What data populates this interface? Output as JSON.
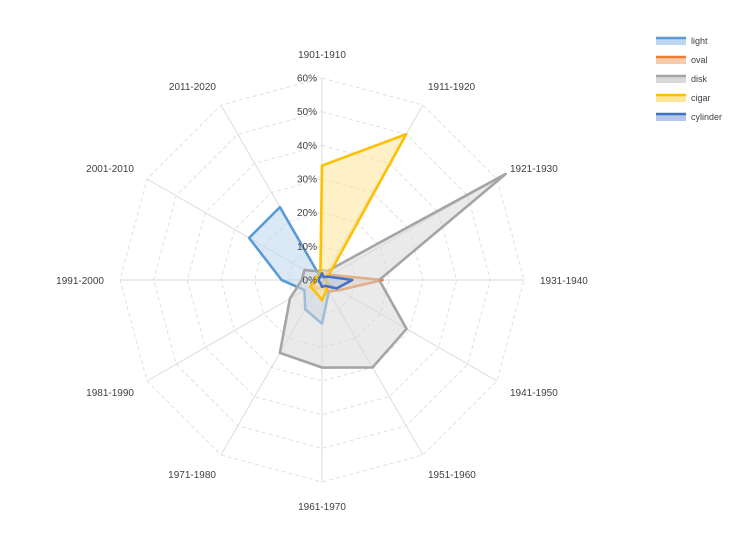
{
  "chart_data": {
    "type": "radar",
    "categories": [
      "1901-1910",
      "1911-1920",
      "1921-1930",
      "1931-1940",
      "1941-1950",
      "1951-1960",
      "1961-1970",
      "1971-1980",
      "1981-1990",
      "1991-2000",
      "2001-2010",
      "2011-2020"
    ],
    "rlim": [
      0,
      60
    ],
    "ticks": [
      "0%",
      "10%",
      "20%",
      "30%",
      "40%",
      "50%",
      "60%"
    ],
    "grid": true,
    "legend_position": "top-right",
    "series": [
      {
        "name": "light",
        "color": "#5b9bd5",
        "fill": "#bdd7ee",
        "values": [
          0,
          0,
          0,
          0,
          4,
          4,
          13,
          10,
          6,
          12,
          25,
          25
        ]
      },
      {
        "name": "oval",
        "color": "#ed7d31",
        "fill": "#f8cbad",
        "values": [
          2,
          2,
          3,
          18,
          6,
          4,
          2,
          3,
          3,
          2,
          2,
          1
        ]
      },
      {
        "name": "disk",
        "color": "#a5a5a5",
        "fill": "#d9d9d9",
        "values": [
          3,
          3,
          63,
          17,
          29,
          30,
          26,
          25,
          11,
          6,
          6,
          3
        ]
      },
      {
        "name": "cigar",
        "color": "#ffc000",
        "fill": "#ffe699",
        "values": [
          34,
          50,
          2,
          1,
          2,
          3,
          6,
          4,
          4,
          2,
          2,
          1
        ]
      },
      {
        "name": "cylinder",
        "color": "#4472c4",
        "fill": "#b4c7e7",
        "values": [
          2,
          1,
          2,
          9,
          5,
          2,
          2,
          1,
          1,
          1,
          1,
          1
        ]
      }
    ]
  }
}
